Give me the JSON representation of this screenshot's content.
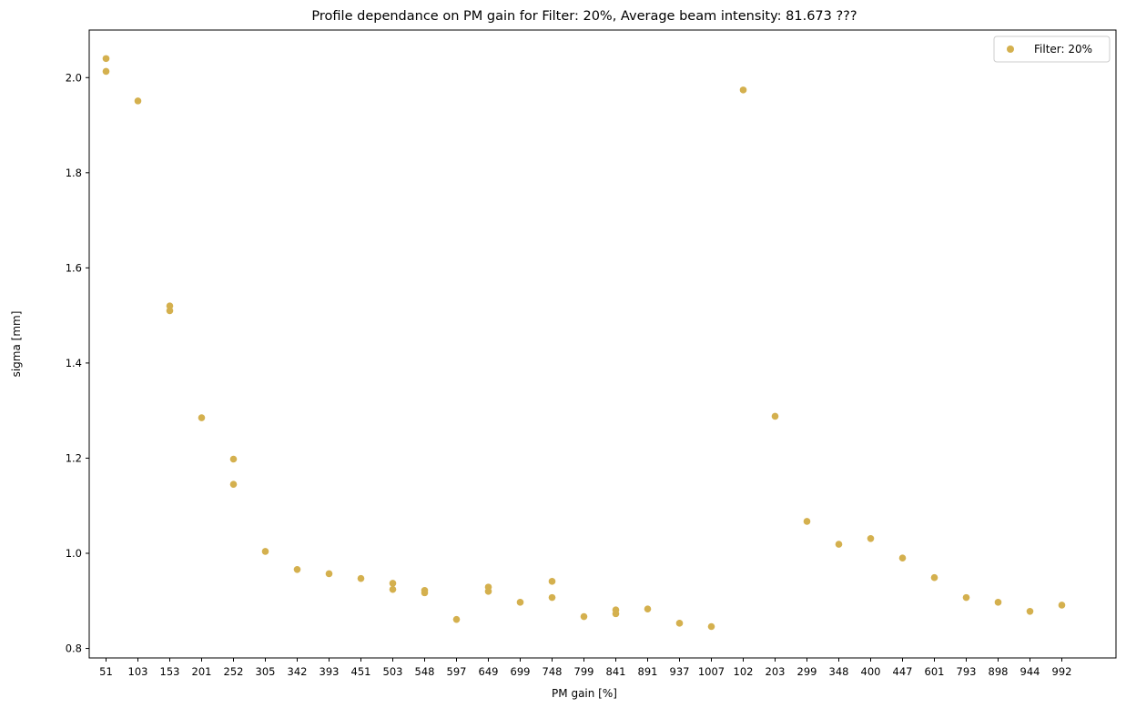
{
  "chart_data": {
    "type": "scatter",
    "title": "Profile dependance on PM gain for Filter: 20%, Average beam intensity: 81.673 ???",
    "xlabel": "PM gain [%]",
    "ylabel": "sigma [mm]",
    "x_axis": "categorical",
    "categories": [
      "51",
      "103",
      "153",
      "201",
      "252",
      "305",
      "342",
      "393",
      "451",
      "503",
      "548",
      "597",
      "649",
      "699",
      "748",
      "799",
      "841",
      "891",
      "937",
      "1007",
      "102",
      "203",
      "299",
      "348",
      "400",
      "447",
      "601",
      "793",
      "898",
      "944",
      "992"
    ],
    "ylim": [
      0.78,
      2.1
    ],
    "yticks": [
      0.8,
      1.0,
      1.2,
      1.4,
      1.6,
      1.8,
      2.0
    ],
    "ytick_labels": [
      "0.8",
      "1.0",
      "1.2",
      "1.4",
      "1.6",
      "1.8",
      "2.0"
    ],
    "grid": false,
    "legend_position": "top-right",
    "color": "#d4b04e",
    "series": [
      {
        "name": "Filter: 20%",
        "points": [
          {
            "x": "51",
            "y": 2.04
          },
          {
            "x": "51",
            "y": 2.013
          },
          {
            "x": "103",
            "y": 1.951
          },
          {
            "x": "153",
            "y": 1.52
          },
          {
            "x": "153",
            "y": 1.51
          },
          {
            "x": "201",
            "y": 1.285
          },
          {
            "x": "252",
            "y": 1.198
          },
          {
            "x": "252",
            "y": 1.145
          },
          {
            "x": "305",
            "y": 1.004
          },
          {
            "x": "342",
            "y": 0.966
          },
          {
            "x": "393",
            "y": 0.957
          },
          {
            "x": "451",
            "y": 0.947
          },
          {
            "x": "503",
            "y": 0.937
          },
          {
            "x": "503",
            "y": 0.924
          },
          {
            "x": "548",
            "y": 0.922
          },
          {
            "x": "548",
            "y": 0.917
          },
          {
            "x": "597",
            "y": 0.861
          },
          {
            "x": "649",
            "y": 0.929
          },
          {
            "x": "649",
            "y": 0.92
          },
          {
            "x": "699",
            "y": 0.897
          },
          {
            "x": "748",
            "y": 0.941
          },
          {
            "x": "748",
            "y": 0.907
          },
          {
            "x": "799",
            "y": 0.867
          },
          {
            "x": "841",
            "y": 0.881
          },
          {
            "x": "841",
            "y": 0.873
          },
          {
            "x": "891",
            "y": 0.883
          },
          {
            "x": "937",
            "y": 0.853
          },
          {
            "x": "1007",
            "y": 0.846
          },
          {
            "x": "102",
            "y": 1.974
          },
          {
            "x": "203",
            "y": 1.288
          },
          {
            "x": "299",
            "y": 1.067
          },
          {
            "x": "348",
            "y": 1.019
          },
          {
            "x": "400",
            "y": 1.031
          },
          {
            "x": "447",
            "y": 0.99
          },
          {
            "x": "601",
            "y": 0.949
          },
          {
            "x": "793",
            "y": 0.907
          },
          {
            "x": "898",
            "y": 0.897
          },
          {
            "x": "944",
            "y": 0.878
          },
          {
            "x": "992",
            "y": 0.891
          }
        ]
      }
    ]
  }
}
